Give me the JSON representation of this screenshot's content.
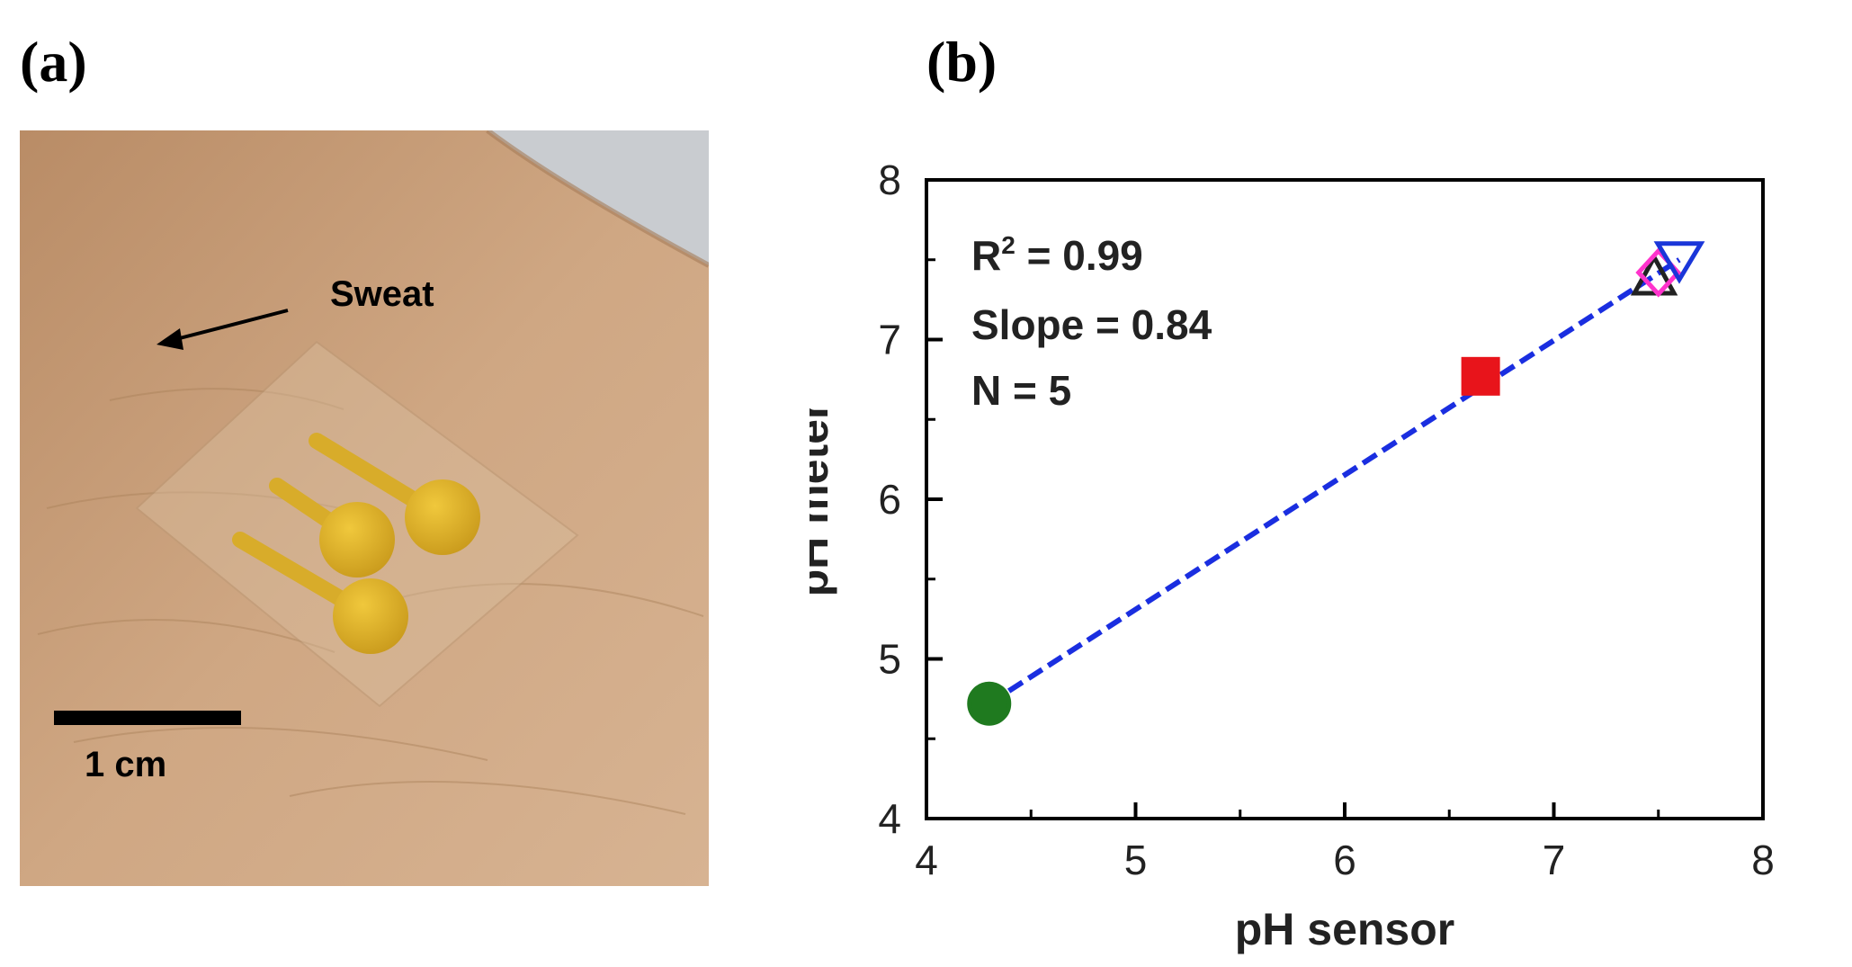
{
  "panel_a": {
    "label": "(a)",
    "annotation": "Sweat",
    "scale_bar": "1 cm",
    "colors": {
      "skin": "#c9a27e",
      "electrode": "#e0b52a",
      "background": "#c9ccd0"
    }
  },
  "panel_b": {
    "label": "(b)"
  },
  "chart_data": {
    "type": "scatter",
    "xlabel": "pH sensor",
    "ylabel": "pH meter",
    "xlim": [
      4,
      8
    ],
    "ylim": [
      4,
      8
    ],
    "x_ticks": [
      "4",
      "5",
      "6",
      "7",
      "8"
    ],
    "y_ticks": [
      "4",
      "5",
      "6",
      "7",
      "8"
    ],
    "annotations": [
      {
        "prefix": "R",
        "sup": "2",
        "suffix": " = 0.99"
      },
      {
        "text": "Slope = 0.84"
      },
      {
        "text": "N = 5"
      }
    ],
    "series": [
      {
        "name": "circle",
        "marker": "circle",
        "color": "#1f7a1f",
        "filled": true,
        "x": 4.3,
        "y": 4.72
      },
      {
        "name": "square",
        "marker": "square",
        "color": "#e8141b",
        "filled": true,
        "x": 6.65,
        "y": 6.77
      },
      {
        "name": "up-triangle",
        "marker": "triangle-up",
        "color": "#222222",
        "filled": false,
        "x": 7.48,
        "y": 7.38
      },
      {
        "name": "diamond",
        "marker": "diamond",
        "color": "#ff33cc",
        "filled": false,
        "x": 7.5,
        "y": 7.42
      },
      {
        "name": "down-triangle",
        "marker": "triangle-down",
        "color": "#1a36d9",
        "filled": false,
        "x": 7.6,
        "y": 7.5
      }
    ],
    "fit_line": {
      "x": [
        4.3,
        7.6
      ],
      "y": [
        4.72,
        7.5
      ],
      "color": "#1a2ee0",
      "style": "dashed"
    },
    "grid": false
  }
}
